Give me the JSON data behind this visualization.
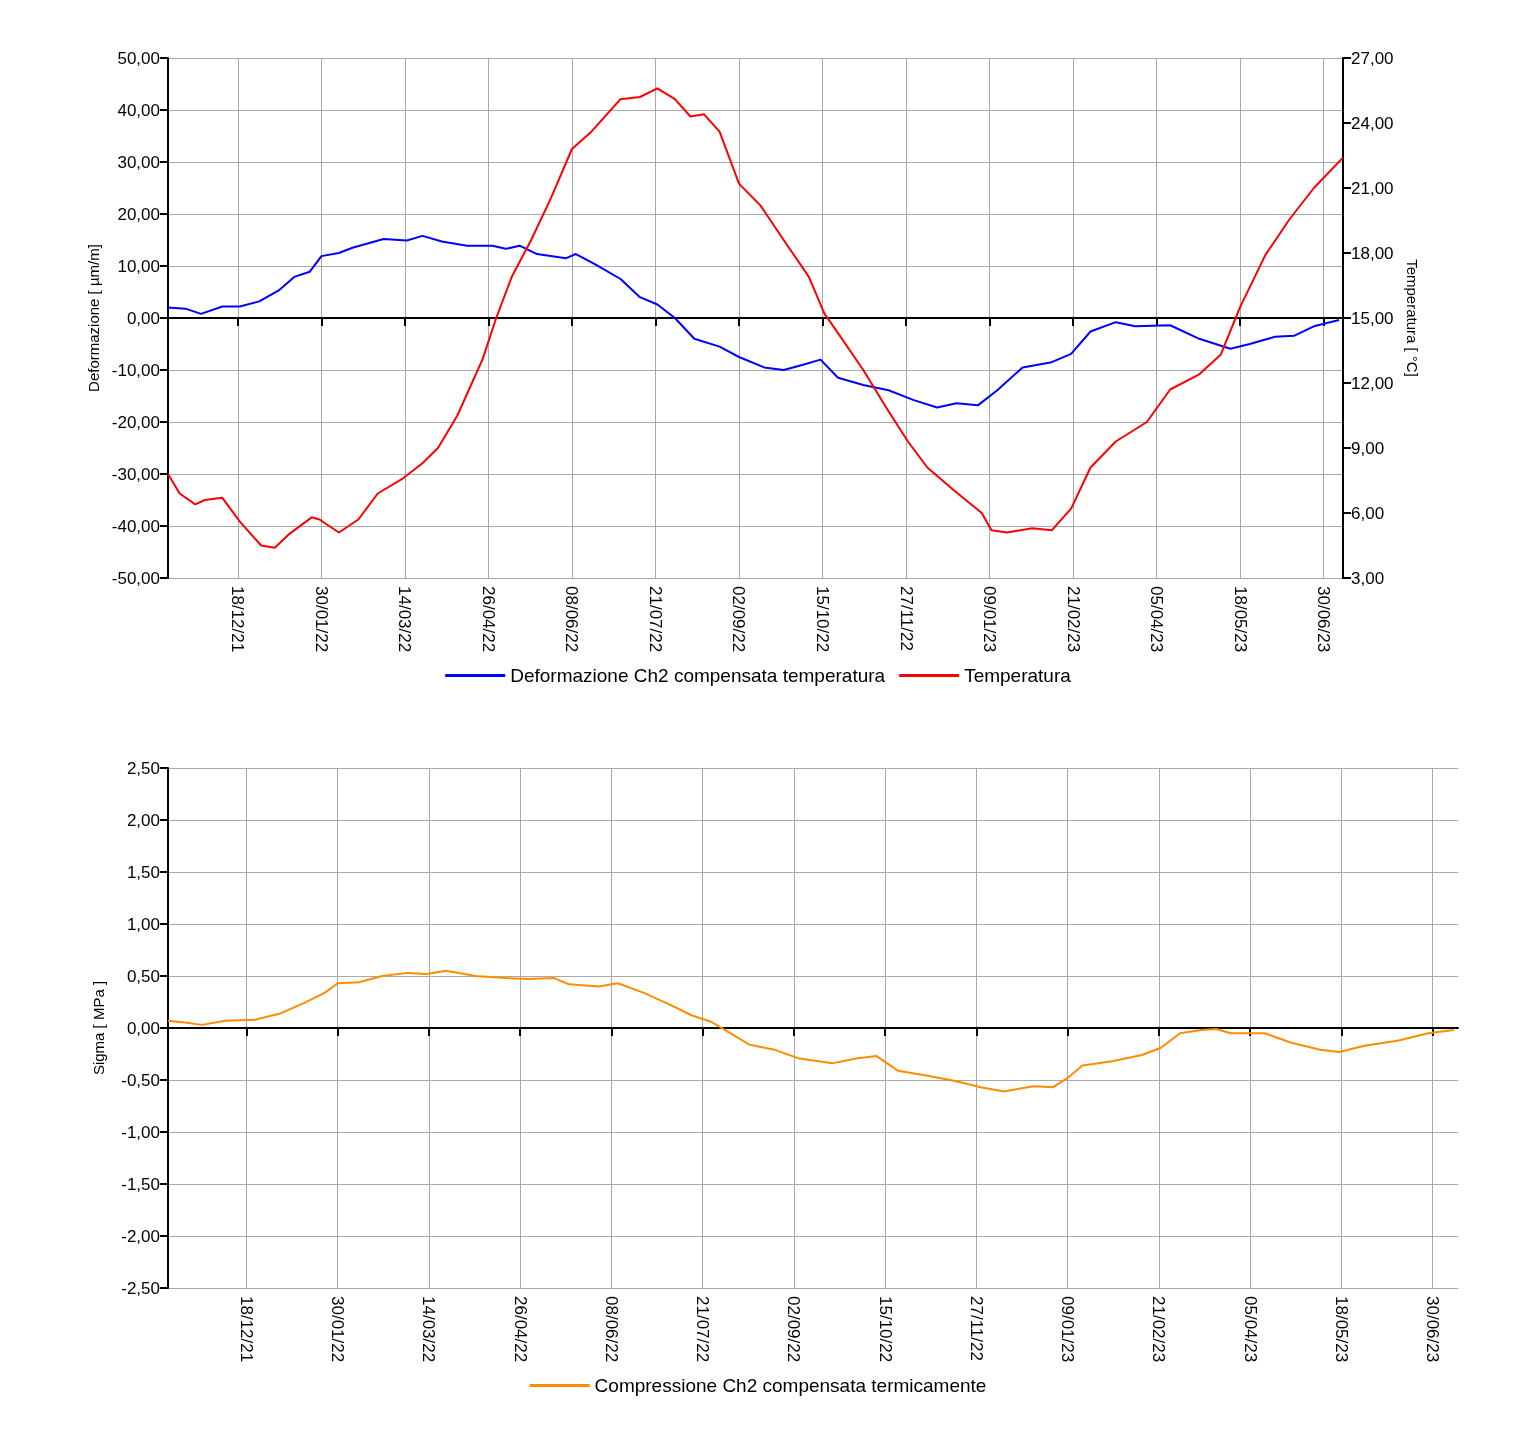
{
  "chart_data": [
    {
      "type": "line",
      "ylabel": "Deformazione [ µm/m]",
      "y2label": "Temperatura [ °C]",
      "xlim": [
        "2021-11-12",
        "2023-07-10"
      ],
      "xticks": [
        {
          "value": "2021-12-18",
          "label": "18/12/21"
        },
        {
          "value": "2022-01-30",
          "label": "30/01/22"
        },
        {
          "value": "2022-03-14",
          "label": "14/03/22"
        },
        {
          "value": "2022-04-26",
          "label": "26/04/22"
        },
        {
          "value": "2022-06-08",
          "label": "08/06/22"
        },
        {
          "value": "2022-07-21",
          "label": "21/07/22"
        },
        {
          "value": "2022-09-02",
          "label": "02/09/22"
        },
        {
          "value": "2022-10-15",
          "label": "15/10/22"
        },
        {
          "value": "2022-11-27",
          "label": "27/11/22"
        },
        {
          "value": "2023-01-09",
          "label": "09/01/23"
        },
        {
          "value": "2023-02-21",
          "label": "21/02/23"
        },
        {
          "value": "2023-04-05",
          "label": "05/04/23"
        },
        {
          "value": "2023-05-18",
          "label": "18/05/23"
        },
        {
          "value": "2023-06-30",
          "label": "30/06/23"
        }
      ],
      "ylim": [
        -50,
        50
      ],
      "yticks": [
        {
          "value": -50,
          "label": "-50,00"
        },
        {
          "value": -40,
          "label": "-40,00"
        },
        {
          "value": -30,
          "label": "-30,00"
        },
        {
          "value": -20,
          "label": "-20,00"
        },
        {
          "value": -10,
          "label": "-10,00"
        },
        {
          "value": 0,
          "label": "0,00"
        },
        {
          "value": 10,
          "label": "10,00"
        },
        {
          "value": 20,
          "label": "20,00"
        },
        {
          "value": 30,
          "label": "30,00"
        },
        {
          "value": 40,
          "label": "40,00"
        },
        {
          "value": 50,
          "label": "50,00"
        }
      ],
      "y2lim": [
        3,
        27
      ],
      "y2ticks": [
        {
          "value": 3,
          "label": "3,00"
        },
        {
          "value": 6,
          "label": "6,00"
        },
        {
          "value": 9,
          "label": "9,00"
        },
        {
          "value": 12,
          "label": "12,00"
        },
        {
          "value": 15,
          "label": "15,00"
        },
        {
          "value": 18,
          "label": "18,00"
        },
        {
          "value": 21,
          "label": "21,00"
        },
        {
          "value": 24,
          "label": "24,00"
        },
        {
          "value": 27,
          "label": "27,00"
        }
      ],
      "grid": true,
      "legend": "bottom",
      "marker": "none",
      "line_style": "solid",
      "series": [
        {
          "name": "Deformazione Ch2 compensata temperatura",
          "color": "#0000ff",
          "x": [
            "2021-11-12",
            "2021-11-21",
            "2021-11-29",
            "2021-12-10",
            "2021-12-19",
            "2021-12-29",
            "2022-01-08",
            "2022-01-16",
            "2022-01-24",
            "2022-01-30",
            "2022-02-08",
            "2022-02-15",
            "2022-03-03",
            "2022-03-15",
            "2022-03-23",
            "2022-04-02",
            "2022-04-15",
            "2022-04-28",
            "2022-05-05",
            "2022-05-12",
            "2022-05-21",
            "2022-06-05",
            "2022-06-10",
            "2022-06-20",
            "2022-07-03",
            "2022-07-13",
            "2022-07-22",
            "2022-07-31",
            "2022-08-10",
            "2022-08-23",
            "2022-09-02",
            "2022-09-15",
            "2022-09-25",
            "2022-10-05",
            "2022-10-14",
            "2022-10-23",
            "2022-11-05",
            "2022-11-18",
            "2022-12-01",
            "2022-12-13",
            "2022-12-23",
            "2023-01-03",
            "2023-01-13",
            "2023-01-26",
            "2023-02-10",
            "2023-02-20",
            "2023-03-02",
            "2023-03-15",
            "2023-03-25",
            "2023-04-12",
            "2023-04-27",
            "2023-05-13",
            "2023-05-23",
            "2023-06-05",
            "2023-06-15",
            "2023-06-25",
            "2023-07-08"
          ],
          "values": [
            2.0,
            1.8,
            0.8,
            2.2,
            2.2,
            3.2,
            5.3,
            7.9,
            8.9,
            11.9,
            12.5,
            13.5,
            15.2,
            14.9,
            15.8,
            14.7,
            13.9,
            13.9,
            13.3,
            13.9,
            12.3,
            11.5,
            12.3,
            10.3,
            7.5,
            4.0,
            2.6,
            0,
            -4,
            -5.5,
            -7.5,
            -9.5,
            -10,
            -9,
            -8,
            -11.5,
            -12.9,
            -13.9,
            -15.8,
            -17.2,
            -16.4,
            -16.8,
            -13.9,
            -9.5,
            -8.5,
            -6.9,
            -2.6,
            -0.8,
            -1.6,
            -1.4,
            -4,
            -5.9,
            -5,
            -3.6,
            -3.4,
            -1.6,
            -0.4
          ]
        },
        {
          "name": "Temperatura",
          "color": "#ff0000",
          "axis": "y2",
          "x": [
            "2021-11-12",
            "2021-11-18",
            "2021-11-26",
            "2021-12-01",
            "2021-12-10",
            "2021-12-19",
            "2021-12-30",
            "2022-01-06",
            "2022-01-13",
            "2022-01-25",
            "2022-01-29",
            "2022-02-08",
            "2022-02-18",
            "2022-02-28",
            "2022-03-13",
            "2022-03-23",
            "2022-03-31",
            "2022-04-10",
            "2022-04-23",
            "2022-04-30",
            "2022-05-08",
            "2022-05-18",
            "2022-05-28",
            "2022-06-08",
            "2022-06-18",
            "2022-07-03",
            "2022-07-13",
            "2022-07-22",
            "2022-07-31",
            "2022-08-08",
            "2022-08-15",
            "2022-08-23",
            "2022-09-02",
            "2022-09-13",
            "2022-09-25",
            "2022-10-08",
            "2022-10-16",
            "2022-10-23",
            "2022-11-05",
            "2022-11-18",
            "2022-11-28",
            "2022-12-08",
            "2022-12-21",
            "2023-01-05",
            "2023-01-10",
            "2023-01-18",
            "2023-01-31",
            "2023-02-10",
            "2023-02-20",
            "2023-03-02",
            "2023-03-15",
            "2023-03-31",
            "2023-04-12",
            "2023-04-27",
            "2023-05-08",
            "2023-05-18",
            "2023-05-31",
            "2023-06-12",
            "2023-06-25",
            "2023-07-10"
          ],
          "values": [
            7.8,
            6.9,
            6.4,
            6.6,
            6.7,
            5.6,
            4.5,
            4.4,
            5.0,
            5.8,
            5.7,
            5.1,
            5.7,
            6.9,
            7.6,
            8.3,
            9.0,
            10.5,
            13.1,
            15.0,
            16.9,
            18.6,
            20.5,
            22.8,
            23.6,
            25.1,
            25.2,
            25.6,
            25.1,
            24.3,
            24.4,
            23.6,
            21.2,
            20.2,
            18.6,
            16.9,
            15.2,
            14.3,
            12.6,
            10.7,
            9.3,
            8.1,
            7.1,
            6.0,
            5.2,
            5.1,
            5.3,
            5.2,
            6.2,
            8.1,
            9.3,
            10.2,
            11.7,
            12.4,
            13.3,
            15.5,
            17.9,
            19.5,
            21.0,
            22.4
          ]
        }
      ]
    },
    {
      "type": "line",
      "ylabel": "Sigma [ MPa ]",
      "xlim": [
        "2021-11-11",
        "2023-07-12"
      ],
      "xticks": [
        {
          "value": "2021-12-18",
          "label": "18/12/21"
        },
        {
          "value": "2022-01-30",
          "label": "30/01/22"
        },
        {
          "value": "2022-03-14",
          "label": "14/03/22"
        },
        {
          "value": "2022-04-26",
          "label": "26/04/22"
        },
        {
          "value": "2022-06-08",
          "label": "08/06/22"
        },
        {
          "value": "2022-07-21",
          "label": "21/07/22"
        },
        {
          "value": "2022-09-02",
          "label": "02/09/22"
        },
        {
          "value": "2022-10-15",
          "label": "15/10/22"
        },
        {
          "value": "2022-11-27",
          "label": "27/11/22"
        },
        {
          "value": "2023-01-09",
          "label": "09/01/23"
        },
        {
          "value": "2023-02-21",
          "label": "21/02/23"
        },
        {
          "value": "2023-04-05",
          "label": "05/04/23"
        },
        {
          "value": "2023-05-18",
          "label": "18/05/23"
        },
        {
          "value": "2023-06-30",
          "label": "30/06/23"
        }
      ],
      "ylim": [
        -2.5,
        2.5
      ],
      "yticks": [
        {
          "value": -2.5,
          "label": "-2,50"
        },
        {
          "value": -2,
          "label": "-2,00"
        },
        {
          "value": -1.5,
          "label": "-1,50"
        },
        {
          "value": -1,
          "label": "-1,00"
        },
        {
          "value": -0.5,
          "label": "-0,50"
        },
        {
          "value": 0,
          "label": "0,00"
        },
        {
          "value": 0.5,
          "label": "0,50"
        },
        {
          "value": 1,
          "label": "1,00"
        },
        {
          "value": 1.5,
          "label": "1,50"
        },
        {
          "value": 2,
          "label": "2,00"
        },
        {
          "value": 2.5,
          "label": "2,50"
        }
      ],
      "grid": true,
      "legend": "bottom",
      "marker": "none",
      "line_style": "solid",
      "series": [
        {
          "name": "Compressione Ch2 compensata termicamente",
          "color": "#ff8c00",
          "x": [
            "2021-11-11",
            "2021-11-20",
            "2021-11-27",
            "2021-12-08",
            "2021-12-22",
            "2022-01-03",
            "2022-01-14",
            "2022-01-24",
            "2022-01-30",
            "2022-02-09",
            "2022-02-20",
            "2022-03-04",
            "2022-03-13",
            "2022-03-22",
            "2022-04-05",
            "2022-04-19",
            "2022-04-30",
            "2022-05-12",
            "2022-05-19",
            "2022-06-02",
            "2022-06-11",
            "2022-06-23",
            "2022-07-05",
            "2022-07-16",
            "2022-07-25",
            "2022-08-03",
            "2022-08-12",
            "2022-08-24",
            "2022-09-04",
            "2022-09-20",
            "2022-10-02",
            "2022-10-11",
            "2022-10-21",
            "2022-11-04",
            "2022-11-17",
            "2022-11-29",
            "2022-12-10",
            "2022-12-24",
            "2023-01-02",
            "2023-01-09",
            "2023-01-16",
            "2023-01-30",
            "2023-02-13",
            "2023-02-22",
            "2023-03-03",
            "2023-03-13",
            "2023-03-20",
            "2023-03-27",
            "2023-04-12",
            "2023-04-24",
            "2023-05-08",
            "2023-05-17",
            "2023-05-29",
            "2023-06-14",
            "2023-06-28",
            "2023-07-10"
          ],
          "values": [
            0.07,
            0.05,
            0.03,
            0.07,
            0.08,
            0.14,
            0.24,
            0.34,
            0.43,
            0.44,
            0.5,
            0.53,
            0.52,
            0.55,
            0.5,
            0.48,
            0.47,
            0.48,
            0.42,
            0.4,
            0.43,
            0.34,
            0.23,
            0.12,
            0.06,
            -0.05,
            -0.16,
            -0.21,
            -0.29,
            -0.34,
            -0.29,
            -0.27,
            -0.41,
            -0.46,
            -0.51,
            -0.57,
            -0.61,
            -0.56,
            -0.57,
            -0.48,
            -0.36,
            -0.32,
            -0.26,
            -0.19,
            -0.05,
            -0.02,
            -0.01,
            -0.05,
            -0.05,
            -0.14,
            -0.21,
            -0.23,
            -0.17,
            -0.12,
            -0.05,
            -0.02
          ]
        }
      ]
    }
  ]
}
